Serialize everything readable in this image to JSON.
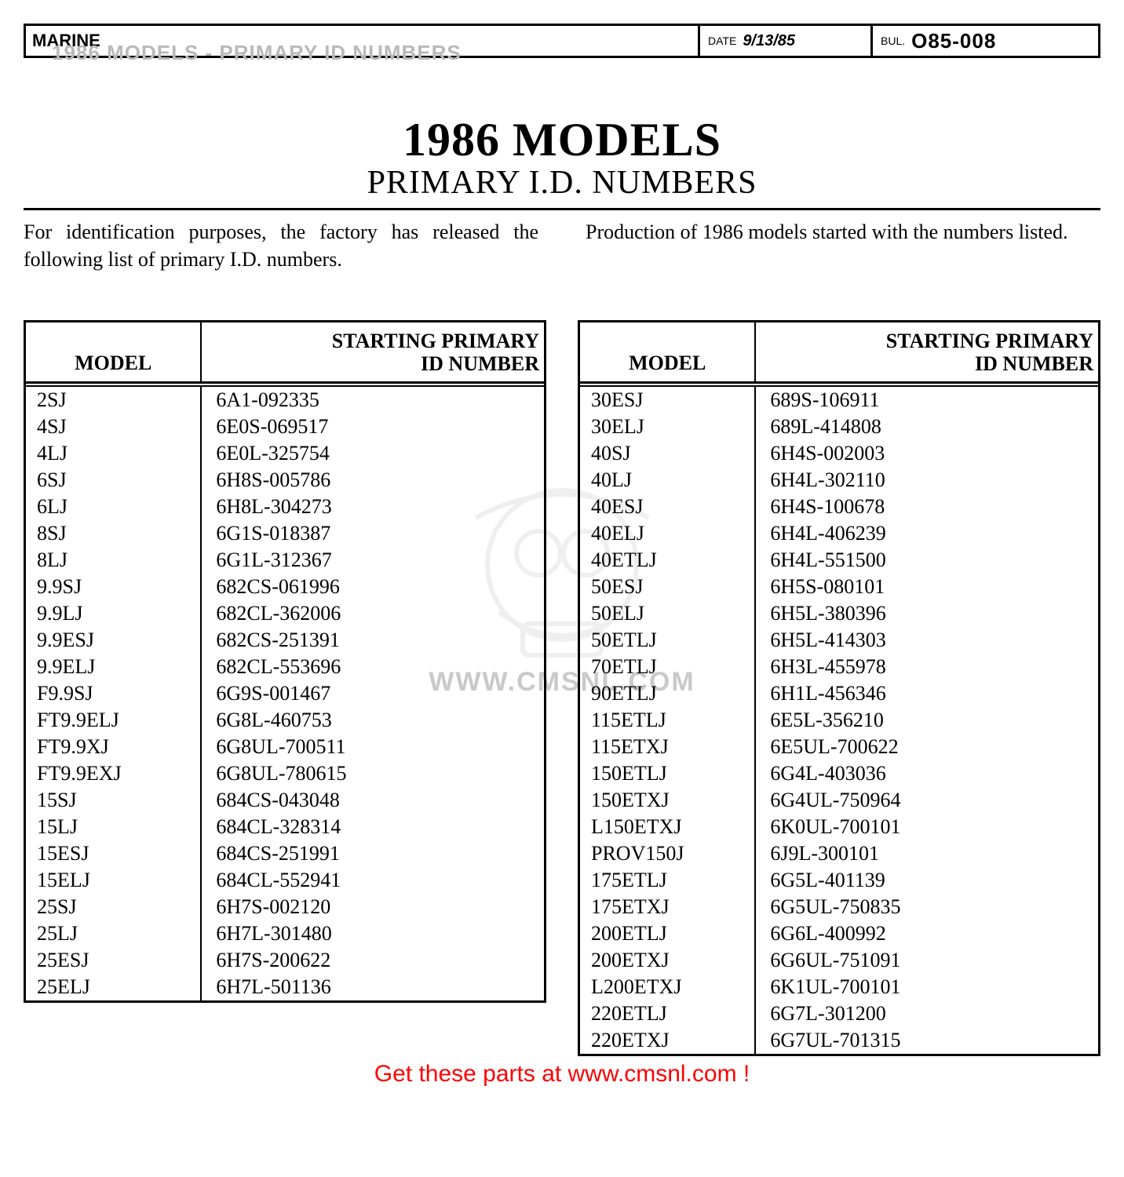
{
  "overlay_title": "1986 MODELS - PRIMARY ID NUMBERS",
  "header": {
    "category": "MARINE",
    "date_label": "DATE",
    "date_value": "9/13/85",
    "bul_label": "BUL.",
    "bul_value": "O85-008"
  },
  "title": "1986 MODELS",
  "subtitle": "PRIMARY I.D. NUMBERS",
  "intro": {
    "left": "For identification purposes, the factory has released the following list of primary I.D. numbers.",
    "right": "Production of 1986 models started with the numbers listed."
  },
  "watermark_text": "WWW.CMSNL.COM",
  "table_headers": {
    "model": "MODEL",
    "id_line1": "STARTING PRIMARY",
    "id_line2": "ID NUMBER"
  },
  "left_table": [
    {
      "model": "2SJ",
      "id": "6A1-092335"
    },
    {
      "model": "4SJ",
      "id": "6E0S-069517"
    },
    {
      "model": "4LJ",
      "id": "6E0L-325754"
    },
    {
      "model": "6SJ",
      "id": "6H8S-005786"
    },
    {
      "model": "6LJ",
      "id": "6H8L-304273"
    },
    {
      "model": "8SJ",
      "id": "6G1S-018387"
    },
    {
      "model": "8LJ",
      "id": "6G1L-312367"
    },
    {
      "model": "9.9SJ",
      "id": "682CS-061996"
    },
    {
      "model": "9.9LJ",
      "id": "682CL-362006"
    },
    {
      "model": "9.9ESJ",
      "id": "682CS-251391"
    },
    {
      "model": "9.9ELJ",
      "id": "682CL-553696"
    },
    {
      "model": "F9.9SJ",
      "id": "6G9S-001467"
    },
    {
      "model": "FT9.9ELJ",
      "id": "6G8L-460753"
    },
    {
      "model": "FT9.9XJ",
      "id": "6G8UL-700511"
    },
    {
      "model": "FT9.9EXJ",
      "id": "6G8UL-780615"
    },
    {
      "model": "15SJ",
      "id": "684CS-043048"
    },
    {
      "model": "15LJ",
      "id": "684CL-328314"
    },
    {
      "model": "15ESJ",
      "id": "684CS-251991"
    },
    {
      "model": "15ELJ",
      "id": "684CL-552941"
    },
    {
      "model": "25SJ",
      "id": "6H7S-002120"
    },
    {
      "model": "25LJ",
      "id": "6H7L-301480"
    },
    {
      "model": "25ESJ",
      "id": "6H7S-200622"
    },
    {
      "model": "25ELJ",
      "id": "6H7L-501136"
    }
  ],
  "right_table": [
    {
      "model": "30ESJ",
      "id": "689S-106911"
    },
    {
      "model": "30ELJ",
      "id": "689L-414808"
    },
    {
      "model": "40SJ",
      "id": "6H4S-002003"
    },
    {
      "model": "40LJ",
      "id": "6H4L-302110"
    },
    {
      "model": "40ESJ",
      "id": "6H4S-100678"
    },
    {
      "model": "40ELJ",
      "id": "6H4L-406239"
    },
    {
      "model": "40ETLJ",
      "id": "6H4L-551500"
    },
    {
      "model": "50ESJ",
      "id": "6H5S-080101"
    },
    {
      "model": "50ELJ",
      "id": "6H5L-380396"
    },
    {
      "model": "50ETLJ",
      "id": "6H5L-414303"
    },
    {
      "model": "70ETLJ",
      "id": "6H3L-455978"
    },
    {
      "model": "90ETLJ",
      "id": "6H1L-456346"
    },
    {
      "model": "115ETLJ",
      "id": "6E5L-356210"
    },
    {
      "model": "115ETXJ",
      "id": "6E5UL-700622"
    },
    {
      "model": "150ETLJ",
      "id": "6G4L-403036"
    },
    {
      "model": "150ETXJ",
      "id": "6G4UL-750964"
    },
    {
      "model": "L150ETXJ",
      "id": "6K0UL-700101"
    },
    {
      "model": "PROV150J",
      "id": "6J9L-300101"
    },
    {
      "model": "175ETLJ",
      "id": "6G5L-401139"
    },
    {
      "model": "175ETXJ",
      "id": "6G5UL-750835"
    },
    {
      "model": "200ETLJ",
      "id": "6G6L-400992"
    },
    {
      "model": "200ETXJ",
      "id": "6G6UL-751091"
    },
    {
      "model": "L200ETXJ",
      "id": "6K1UL-700101"
    },
    {
      "model": "220ETLJ",
      "id": "6G7L-301200"
    },
    {
      "model": "220ETXJ",
      "id": "6G7UL-701315"
    }
  ],
  "footer_cta": "Get these parts at www.cmsnl.com !",
  "colors": {
    "text": "#000000",
    "overlay_gray": "#b9b9b9",
    "watermark_gray": "#c9c9c9",
    "cta_red": "#ff0000",
    "background": "#ffffff"
  }
}
